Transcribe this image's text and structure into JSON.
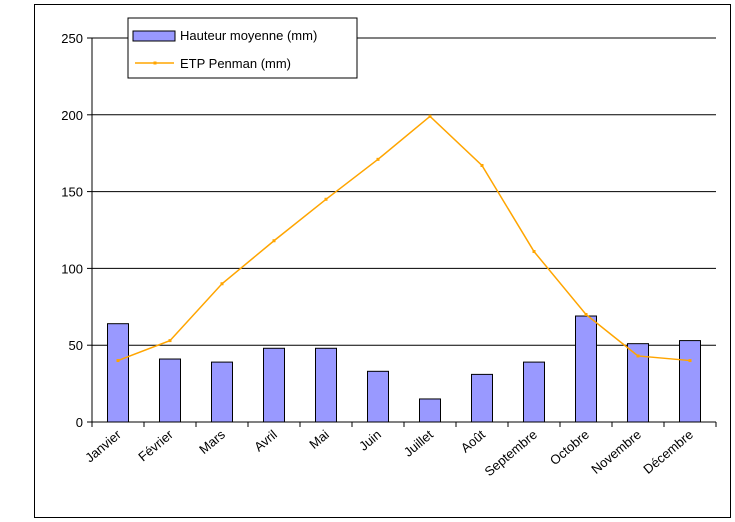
{
  "chart_data": {
    "type": "bar",
    "categories": [
      "Janvier",
      "Février",
      "Mars",
      "Avril",
      "Mai",
      "Juin",
      "Juillet",
      "Août",
      "Septembre",
      "Octobre",
      "Novembre",
      "Décembre"
    ],
    "series": [
      {
        "name": "Hauteur moyenne (mm)",
        "type": "bar",
        "color": "#9999ff",
        "values": [
          64,
          41,
          39,
          48,
          48,
          33,
          15,
          31,
          39,
          69,
          51,
          53
        ]
      },
      {
        "name": "ETP Penman (mm)",
        "type": "line",
        "color": "#ffa500",
        "values": [
          40,
          53,
          90,
          118,
          145,
          171,
          199,
          167,
          111,
          70,
          43,
          40
        ]
      }
    ],
    "ylim": [
      0,
      250
    ],
    "yticks": [
      0,
      50,
      100,
      150,
      200,
      250
    ],
    "grid": true,
    "legend": "top-left"
  }
}
